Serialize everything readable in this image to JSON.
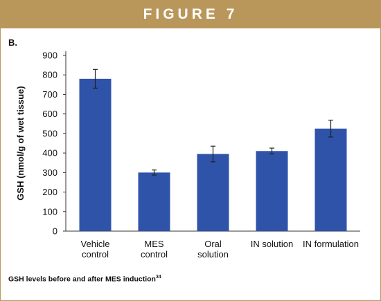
{
  "figure_title": "FIGURE 7",
  "panel_label": "B.",
  "caption": {
    "text": "GSH levels before and after MES induction",
    "ref": "34"
  },
  "colors": {
    "banner": "#b9975b",
    "bar": "#2e53a8",
    "axis": "#333333"
  },
  "chart_data": {
    "type": "bar",
    "title": "",
    "xlabel": "",
    "ylabel": "GSH (nmol/g of wet tissue)",
    "ylim": [
      0,
      900
    ],
    "yticks": [
      "0",
      "100",
      "200",
      "300",
      "400",
      "500",
      "600",
      "700",
      "800",
      "900"
    ],
    "grid": false,
    "categories": [
      [
        "Vehicle",
        "control"
      ],
      [
        "MES",
        "control"
      ],
      [
        "Oral",
        "solution"
      ],
      [
        "IN solution"
      ],
      [
        "IN formulation"
      ]
    ],
    "values": [
      780,
      300,
      395,
      410,
      525
    ],
    "error": [
      48,
      13,
      40,
      15,
      43
    ]
  }
}
